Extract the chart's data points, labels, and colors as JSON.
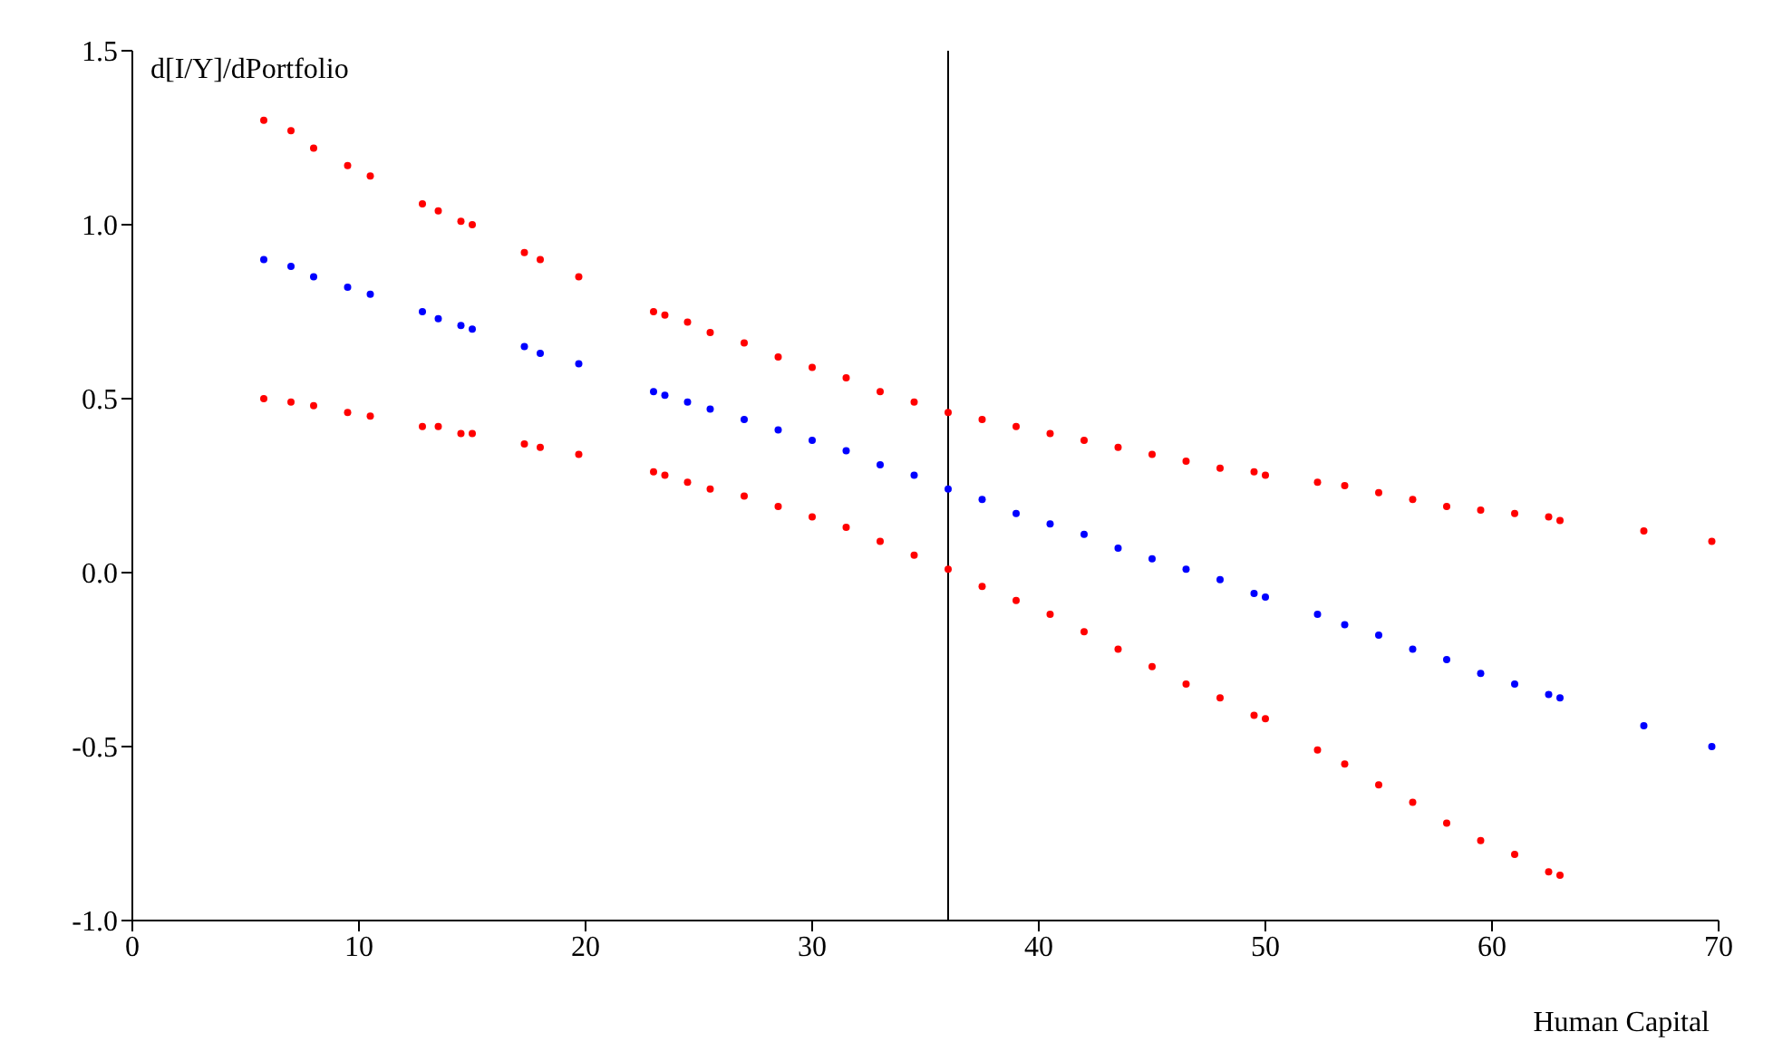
{
  "chart_data": {
    "type": "scatter",
    "xlabel": "Human Capital",
    "ylabel": "d[I/Y]/dPortfolio",
    "x": [
      5.8,
      7,
      8,
      9.5,
      10.5,
      12.8,
      13.5,
      14.5,
      15,
      17.3,
      18,
      19.7,
      23,
      23.5,
      24.5,
      25.5,
      27,
      28.5,
      30,
      31.5,
      33,
      34.5,
      36,
      37.5,
      39,
      40.5,
      42,
      43.5,
      45,
      46.5,
      48,
      49.5,
      50,
      52.3,
      53.5,
      55,
      56.5,
      58,
      59.5,
      61,
      62.5,
      63,
      66.7,
      69.7
    ],
    "series": [
      {
        "color": "#ff0000",
        "values": [
          1.3,
          1.27,
          1.22,
          1.17,
          1.14,
          1.06,
          1.04,
          1.01,
          1.0,
          0.92,
          0.9,
          0.85,
          0.75,
          0.74,
          0.72,
          0.69,
          0.66,
          0.62,
          0.59,
          0.56,
          0.52,
          0.49,
          0.46,
          0.44,
          0.42,
          0.4,
          0.38,
          0.36,
          0.34,
          0.32,
          0.3,
          0.29,
          0.28,
          0.26,
          0.25,
          0.23,
          0.21,
          0.19,
          0.18,
          0.17,
          0.16,
          0.15,
          0.12,
          0.09
        ]
      },
      {
        "color": "#0000ff",
        "values": [
          0.9,
          0.88,
          0.85,
          0.82,
          0.8,
          0.75,
          0.73,
          0.71,
          0.7,
          0.65,
          0.63,
          0.6,
          0.52,
          0.51,
          0.49,
          0.47,
          0.44,
          0.41,
          0.38,
          0.35,
          0.31,
          0.28,
          0.24,
          0.21,
          0.17,
          0.14,
          0.11,
          0.07,
          0.04,
          0.01,
          -0.02,
          -0.06,
          -0.07,
          -0.12,
          -0.15,
          -0.18,
          -0.22,
          -0.25,
          -0.29,
          -0.32,
          -0.35,
          -0.36,
          -0.44,
          -0.5
        ]
      },
      {
        "color": "#ff0000",
        "values": [
          0.5,
          0.49,
          0.48,
          0.46,
          0.45,
          0.42,
          0.42,
          0.4,
          0.4,
          0.37,
          0.36,
          0.34,
          0.29,
          0.28,
          0.26,
          0.24,
          0.22,
          0.19,
          0.16,
          0.13,
          0.09,
          0.05,
          0.01,
          -0.04,
          -0.08,
          -0.12,
          -0.17,
          -0.22,
          -0.27,
          -0.32,
          -0.36,
          -0.41,
          -0.42,
          -0.51,
          -0.55,
          -0.61,
          -0.66,
          -0.72,
          -0.77,
          -0.81,
          -0.86,
          -0.87,
          null,
          null
        ]
      }
    ],
    "xlim": [
      0,
      70
    ],
    "xticks": [
      0,
      10,
      20,
      30,
      40,
      50,
      60,
      70
    ],
    "ylim": [
      -1,
      1.5
    ],
    "yticks": [
      {
        "value": -1,
        "label": "-1.0"
      },
      {
        "value": -0.5,
        "label": "-0.5"
      },
      {
        "value": 0,
        "label": "0.0"
      },
      {
        "value": 0.5,
        "label": "0.5"
      },
      {
        "value": 1,
        "label": "1.0"
      },
      {
        "value": 1.5,
        "label": "1.5"
      }
    ],
    "ref_lines": [
      {
        "axis": "x",
        "value": 36,
        "color": "#000000"
      }
    ],
    "marker": "circle",
    "grid": false,
    "legend": false
  }
}
